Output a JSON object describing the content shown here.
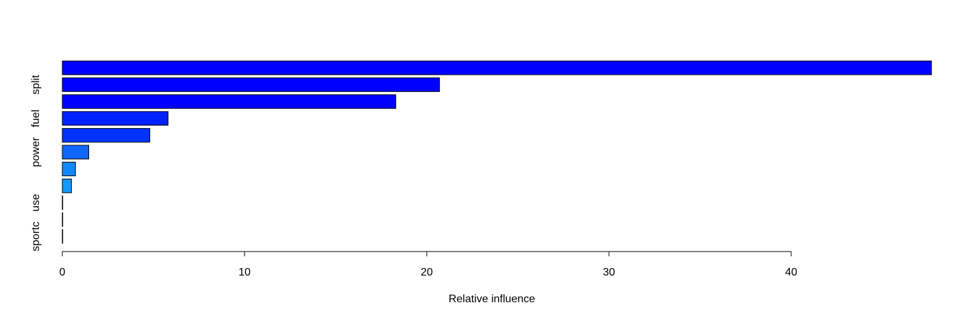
{
  "chart_data": {
    "type": "bar",
    "orientation": "horizontal",
    "title": "",
    "xlabel": "Relative influence",
    "ylabel": "",
    "xlim": [
      0,
      47.8
    ],
    "xticks": [
      0,
      10,
      20,
      30,
      40
    ],
    "grid": false,
    "legend": "none",
    "bars": [
      {
        "label": "",
        "value": 47.7,
        "color": "#0000FF"
      },
      {
        "label": "split",
        "value": 20.7,
        "color": "#0000FF"
      },
      {
        "label": "",
        "value": 18.3,
        "color": "#0000FF"
      },
      {
        "label": "fuel",
        "value": 5.8,
        "color": "#0022FF"
      },
      {
        "label": "",
        "value": 4.8,
        "color": "#0033FF"
      },
      {
        "label": "power",
        "value": 1.45,
        "color": "#1166FF"
      },
      {
        "label": "",
        "value": 0.72,
        "color": "#1188FF"
      },
      {
        "label": "",
        "value": 0.5,
        "color": "#1199FF"
      },
      {
        "label": "use",
        "value": 0.02,
        "color": "#22AAFF"
      },
      {
        "label": "",
        "value": 0.01,
        "color": "#22BBFF"
      },
      {
        "label": "sportc",
        "value": 0.01,
        "color": "#22CCFF"
      }
    ]
  }
}
